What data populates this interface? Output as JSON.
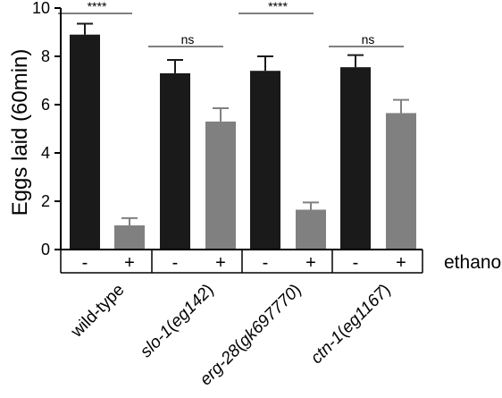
{
  "chart_data": {
    "type": "bar",
    "title": "",
    "xlabel": "",
    "ylabel": "Eggs laid (60min)",
    "ylim": [
      0,
      10
    ],
    "yticks": [
      0,
      2,
      4,
      6,
      8,
      10
    ],
    "grid": false,
    "condition_label": "ethanol",
    "groups": [
      {
        "name": "wild-type",
        "gene": "",
        "allele": "",
        "values": [
          8.9,
          1.0
        ],
        "errors": [
          0.45,
          0.3
        ],
        "signs": [
          "-",
          "+"
        ],
        "significance": "****"
      },
      {
        "name": "",
        "gene": "slo-1",
        "allele": "eg142",
        "values": [
          7.3,
          5.3
        ],
        "errors": [
          0.55,
          0.55
        ],
        "signs": [
          "-",
          "+"
        ],
        "significance": "ns"
      },
      {
        "name": "",
        "gene": "erg-28",
        "allele": "gk697770",
        "values": [
          7.4,
          1.65
        ],
        "errors": [
          0.6,
          0.3
        ],
        "signs": [
          "-",
          "+"
        ],
        "significance": "****"
      },
      {
        "name": "",
        "gene": "ctn-1",
        "allele": "eg1167",
        "values": [
          7.55,
          5.65
        ],
        "errors": [
          0.5,
          0.55
        ],
        "signs": [
          "-",
          "+"
        ],
        "significance": "ns"
      }
    ],
    "colors": {
      "untreated": "#1a1a1a",
      "treated": "#808080",
      "axis": "#000000"
    }
  }
}
